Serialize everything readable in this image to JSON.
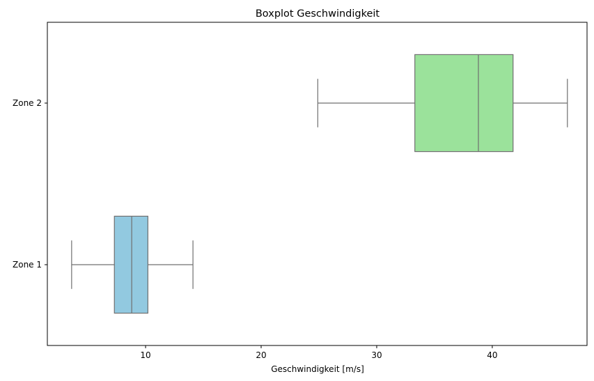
{
  "chart_data": {
    "type": "boxplot",
    "orientation": "horizontal",
    "title": "Boxplot Geschwindigkeit",
    "xlabel": "Geschwindigkeit [m/s]",
    "ylabel": "",
    "xlim": [
      1.5,
      48.2
    ],
    "xticks": [
      10,
      20,
      30,
      40
    ],
    "grid": false,
    "categories": [
      "Zone 1",
      "Zone 2"
    ],
    "boxes": [
      {
        "category": "Zone 1",
        "whisker_low": 3.6,
        "q1": 7.3,
        "median": 8.8,
        "q3": 10.2,
        "whisker_high": 14.1,
        "color": "#92c9e0"
      },
      {
        "category": "Zone 2",
        "whisker_low": 24.9,
        "q1": 33.3,
        "median": 38.8,
        "q3": 41.8,
        "whisker_high": 46.5,
        "color": "#9be29b"
      }
    ],
    "line_color": "#6f6f6f"
  }
}
